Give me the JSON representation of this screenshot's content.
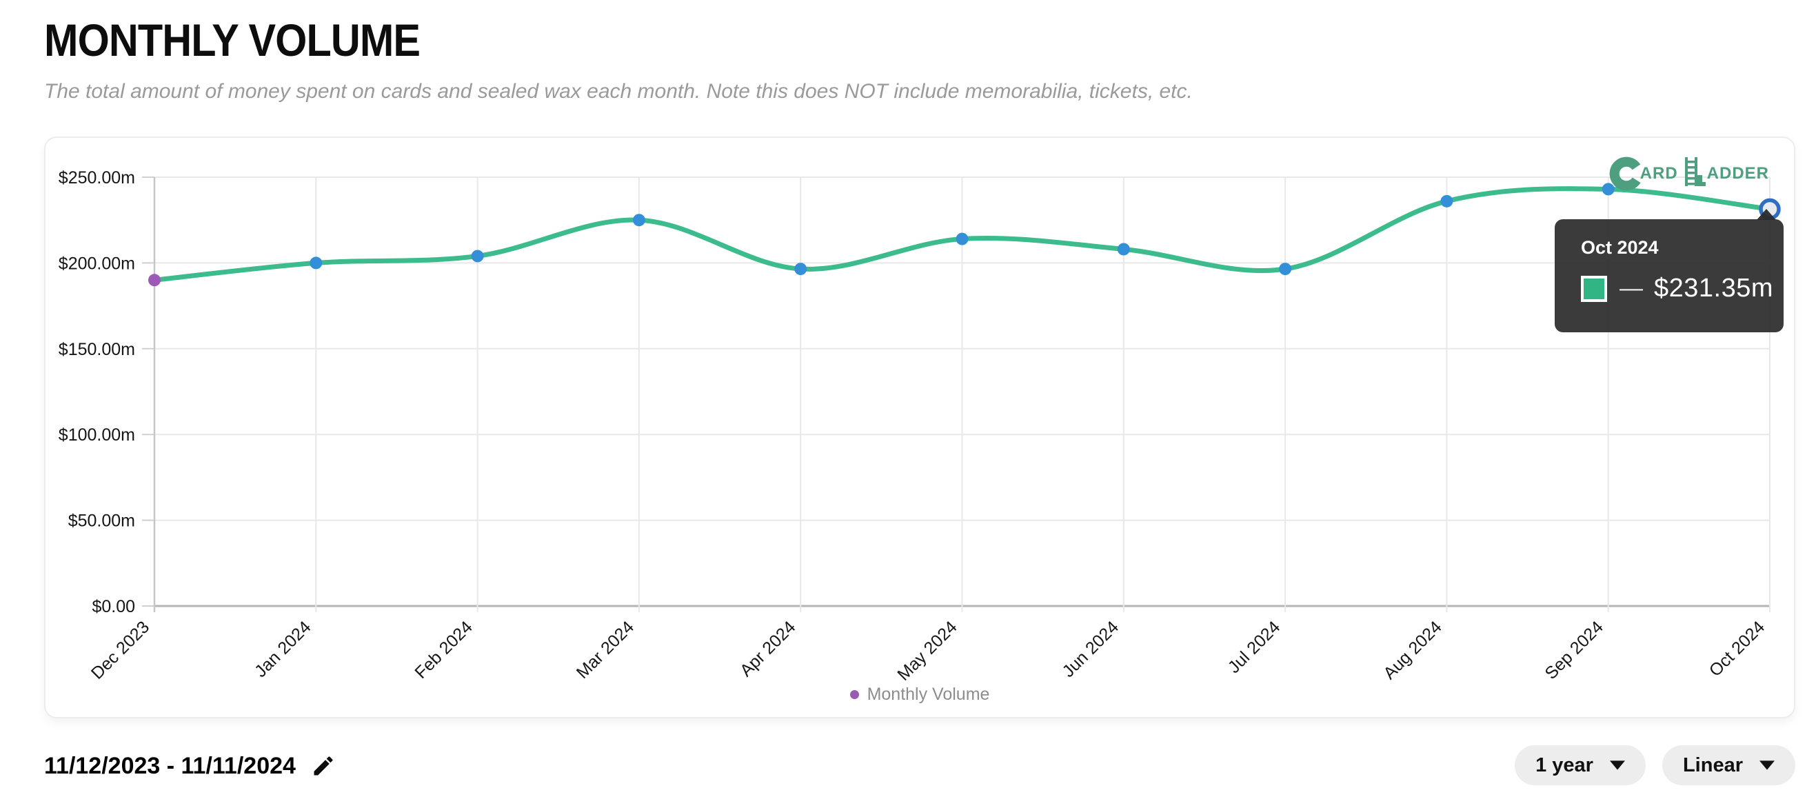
{
  "header": {
    "title": "MONTHLY VOLUME",
    "subtitle": "The total amount of money spent on cards and sealed wax each month. Note this does NOT include memorabilia, tickets, etc."
  },
  "chart_data": {
    "type": "line",
    "title": "Monthly Volume",
    "x": [
      "Dec 2023",
      "Jan 2024",
      "Feb 2024",
      "Mar 2024",
      "Apr 2024",
      "May 2024",
      "Jun 2024",
      "Jul 2024",
      "Aug 2024",
      "Sep 2024",
      "Oct 2024"
    ],
    "series": [
      {
        "name": "Monthly Volume",
        "values": [
          190,
          200,
          204,
          225,
          196.5,
          214,
          208,
          196.5,
          236,
          243,
          231.35
        ]
      }
    ],
    "unit": "$ millions",
    "ylim": [
      0,
      250
    ],
    "yticks": [
      {
        "v": 0,
        "label": "$0.00"
      },
      {
        "v": 50,
        "label": "$50.00m"
      },
      {
        "v": 100,
        "label": "$100.00m"
      },
      {
        "v": 150,
        "label": "$150.00m"
      },
      {
        "v": 200,
        "label": "$200.00m"
      },
      {
        "v": 250,
        "label": "$250.00m"
      }
    ],
    "grid": true,
    "legend_position": "bottom",
    "highlighted_point": {
      "x": "Oct 2024",
      "value": 231.35,
      "value_label": "$231.35m"
    },
    "colors": {
      "line": "#3cbb8d",
      "point": "#3390d8",
      "first_point": "#9c59b8",
      "active_ring": "#2e6fc2",
      "active_fill": "#e7eaee"
    }
  },
  "logo": {
    "c": "C",
    "ard": "ARD",
    "adder": "ADDER",
    "color": "#4d9f80"
  },
  "tooltip": {
    "title": "Oct 2024",
    "dash": "—",
    "value": "$231.35m",
    "swatch_color": "#31b585"
  },
  "legend": {
    "label": "Monthly Volume",
    "bullet_color": "#9b59b6"
  },
  "footer": {
    "date_range": "11/12/2023 - 11/11/2024",
    "period": "1 year",
    "scale": "Linear"
  }
}
